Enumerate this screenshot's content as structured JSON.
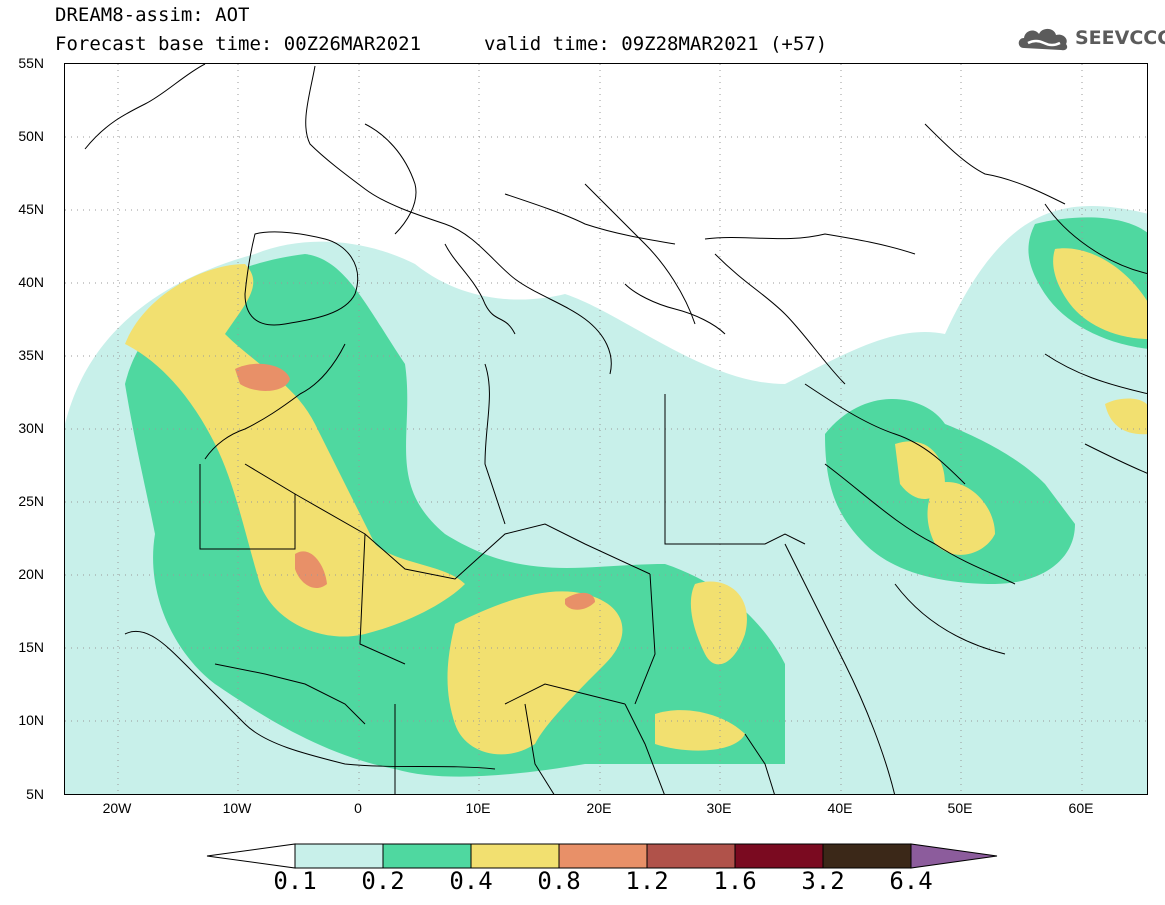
{
  "header": {
    "title": "DREAM8-assim: AOT",
    "base_time": "Forecast base time: 00Z26MAR2021",
    "valid_time": "valid time: 09Z28MAR2021 (+57)"
  },
  "logo": {
    "text": "SEEVCCC",
    "icon": "cloud-icon"
  },
  "map": {
    "lat_labels": [
      "55N",
      "50N",
      "45N",
      "40N",
      "35N",
      "30N",
      "25N",
      "20N",
      "15N",
      "10N",
      "5N"
    ],
    "lon_labels": [
      "20W",
      "10W",
      "0",
      "10E",
      "20E",
      "30E",
      "40E",
      "50E",
      "60E"
    ],
    "lat_range": [
      5,
      55
    ],
    "lon_range": [
      -25,
      65
    ]
  },
  "colorbar": {
    "thresholds": [
      "0.1",
      "0.2",
      "0.4",
      "0.8",
      "1.2",
      "1.6",
      "3.2",
      "6.4"
    ],
    "colors": [
      "#ffffff",
      "#c8f0ea",
      "#4fd8a0",
      "#f2e070",
      "#e89068",
      "#b0524a",
      "#7a0a20",
      "#3b2818",
      "#8c5c9c"
    ]
  }
}
